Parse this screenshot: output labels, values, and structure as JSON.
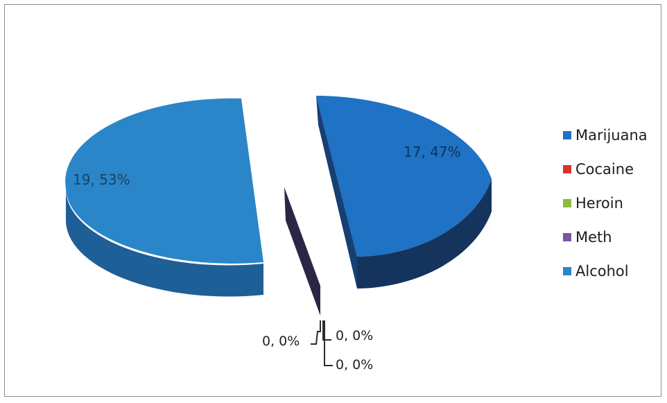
{
  "chart_data": {
    "type": "pie",
    "title": "",
    "labels": [
      "Marijuana",
      "Cocaine",
      "Heroin",
      "Meth",
      "Alcohol"
    ],
    "values": [
      17,
      0,
      0,
      0,
      19
    ],
    "data_labels": [
      "17, 47%",
      "0, 0%",
      "0, 0%",
      "0, 0%",
      "19, 53%"
    ],
    "colors": [
      "#1f72c4",
      "#d9322f",
      "#8dbb3a",
      "#7a55a6",
      "#2a86c8"
    ],
    "legend_position": "right",
    "three_d": true,
    "exploded": true
  }
}
